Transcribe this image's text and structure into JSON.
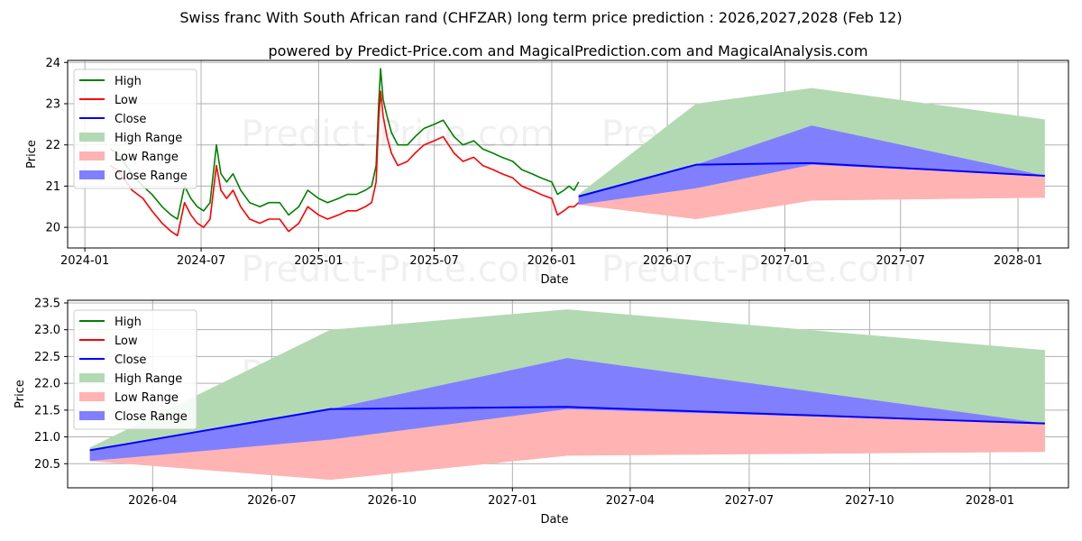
{
  "title": "Swiss franc With South African rand (CHFZAR) long term price prediction : 2026,2027,2028 (Feb 12)",
  "subtitle": "powered by Predict-Price.com and MagicalPrediction.com and MagicalAnalysis.com",
  "watermark": "Predict-Price.com",
  "colors": {
    "high": "#008000",
    "low": "#ff0000",
    "close": "#0000ff",
    "high_range": "#b3d9b3",
    "low_range": "#ffb3b3",
    "close_range": "#8080ff"
  },
  "chart_data": [
    {
      "type": "line",
      "xlabel": "Date",
      "ylabel": "Price",
      "xlim": [
        "2023-12-05",
        "2028-03-20"
      ],
      "ylim": [
        19.5,
        24.05
      ],
      "y_ticks": [
        20,
        21,
        22,
        23,
        24
      ],
      "x_ticks": [
        {
          "date": "2024-01-01",
          "label": "2024-01"
        },
        {
          "date": "2024-07-01",
          "label": "2024-07"
        },
        {
          "date": "2025-01-01",
          "label": "2025-01"
        },
        {
          "date": "2025-07-01",
          "label": "2025-07"
        },
        {
          "date": "2026-01-01",
          "label": "2026-01"
        },
        {
          "date": "2026-07-01",
          "label": "2026-07"
        },
        {
          "date": "2027-01-01",
          "label": "2027-01"
        },
        {
          "date": "2027-07-01",
          "label": "2027-07"
        },
        {
          "date": "2028-01-01",
          "label": "2028-01"
        }
      ],
      "legend": [
        "High",
        "Low",
        "Close",
        "High Range",
        "Low Range",
        "Close Range"
      ],
      "legend_position": "top-left",
      "history": {
        "dates": [
          "2024-02-10",
          "2024-02-20",
          "2024-03-01",
          "2024-03-15",
          "2024-04-01",
          "2024-04-15",
          "2024-05-01",
          "2024-05-15",
          "2024-05-25",
          "2024-06-05",
          "2024-06-15",
          "2024-06-25",
          "2024-07-05",
          "2024-07-15",
          "2024-07-25",
          "2024-08-01",
          "2024-08-10",
          "2024-08-20",
          "2024-09-01",
          "2024-09-15",
          "2024-10-01",
          "2024-10-15",
          "2024-11-01",
          "2024-11-15",
          "2024-12-01",
          "2024-12-15",
          "2025-01-01",
          "2025-01-15",
          "2025-02-01",
          "2025-02-15",
          "2025-03-01",
          "2025-03-15",
          "2025-03-25",
          "2025-04-01",
          "2025-04-05",
          "2025-04-08",
          "2025-04-12",
          "2025-04-18",
          "2025-04-25",
          "2025-05-05",
          "2025-05-20",
          "2025-06-01",
          "2025-06-15",
          "2025-07-01",
          "2025-07-15",
          "2025-08-01",
          "2025-08-15",
          "2025-09-01",
          "2025-09-15",
          "2025-10-01",
          "2025-10-15",
          "2025-11-01",
          "2025-11-15",
          "2025-12-01",
          "2025-12-15",
          "2026-01-01",
          "2026-01-10",
          "2026-01-20",
          "2026-01-28",
          "2026-02-05",
          "2026-02-12"
        ],
        "high": [
          21.9,
          21.8,
          21.6,
          21.3,
          21.0,
          20.8,
          20.5,
          20.3,
          20.2,
          21.0,
          20.7,
          20.5,
          20.4,
          20.6,
          22.0,
          21.3,
          21.1,
          21.3,
          20.9,
          20.6,
          20.5,
          20.6,
          20.6,
          20.3,
          20.5,
          20.9,
          20.7,
          20.6,
          20.7,
          20.8,
          20.8,
          20.9,
          21.0,
          21.5,
          23.0,
          23.85,
          23.1,
          22.7,
          22.3,
          22.0,
          22.0,
          22.2,
          22.4,
          22.5,
          22.6,
          22.2,
          22.0,
          22.1,
          21.9,
          21.8,
          21.7,
          21.6,
          21.4,
          21.3,
          21.2,
          21.1,
          20.8,
          20.9,
          21.0,
          20.9,
          21.1
        ],
        "low": [
          21.5,
          21.4,
          21.2,
          20.9,
          20.7,
          20.4,
          20.1,
          19.9,
          19.8,
          20.6,
          20.3,
          20.1,
          20.0,
          20.2,
          21.5,
          20.9,
          20.7,
          20.9,
          20.5,
          20.2,
          20.1,
          20.2,
          20.2,
          19.9,
          20.1,
          20.5,
          20.3,
          20.2,
          20.3,
          20.4,
          20.4,
          20.5,
          20.6,
          21.1,
          22.6,
          23.3,
          22.7,
          22.2,
          21.8,
          21.5,
          21.6,
          21.8,
          22.0,
          22.1,
          22.2,
          21.8,
          21.6,
          21.7,
          21.5,
          21.4,
          21.3,
          21.2,
          21.0,
          20.9,
          20.8,
          20.7,
          20.3,
          20.4,
          20.5,
          20.5,
          20.6
        ]
      },
      "forecast": {
        "dates": [
          "2026-02-12",
          "2026-08-15",
          "2027-02-12",
          "2028-02-12"
        ],
        "close": [
          20.75,
          21.52,
          21.56,
          21.25
        ],
        "high_range": [
          [
            20.55,
            20.8
          ],
          [
            20.2,
            23.0
          ],
          [
            20.65,
            23.38
          ],
          [
            20.72,
            22.62
          ]
        ],
        "low_range": [
          [
            20.55,
            20.75
          ],
          [
            20.2,
            20.95
          ],
          [
            20.65,
            21.52
          ],
          [
            20.72,
            21.25
          ]
        ],
        "close_range": [
          [
            20.55,
            20.75
          ],
          [
            20.95,
            21.52
          ],
          [
            21.52,
            22.47
          ],
          [
            21.25,
            21.25
          ]
        ]
      }
    },
    {
      "type": "line",
      "xlabel": "Date",
      "ylabel": "Price",
      "xlim": [
        "2026-01-26",
        "2028-03-01"
      ],
      "ylim": [
        20.05,
        23.55
      ],
      "y_ticks": [
        20.5,
        21.0,
        21.5,
        22.0,
        22.5,
        23.0,
        23.5
      ],
      "y_tick_labels": [
        "20.5",
        "21.0",
        "21.5",
        "22.0",
        "22.5",
        "23.0",
        "23.5"
      ],
      "x_ticks": [
        {
          "date": "2026-04-01",
          "label": "2026-04"
        },
        {
          "date": "2026-07-01",
          "label": "2026-07"
        },
        {
          "date": "2026-10-01",
          "label": "2026-10"
        },
        {
          "date": "2027-01-01",
          "label": "2027-01"
        },
        {
          "date": "2027-04-01",
          "label": "2027-04"
        },
        {
          "date": "2027-07-01",
          "label": "2027-07"
        },
        {
          "date": "2027-10-01",
          "label": "2027-10"
        },
        {
          "date": "2028-01-01",
          "label": "2028-01"
        }
      ],
      "legend": [
        "High",
        "Low",
        "Close",
        "High Range",
        "Low Range",
        "Close Range"
      ],
      "legend_position": "top-left",
      "forecast": {
        "dates": [
          "2026-02-12",
          "2026-08-15",
          "2027-02-12",
          "2028-02-12"
        ],
        "close": [
          20.75,
          21.52,
          21.56,
          21.25
        ],
        "high_range": [
          [
            20.55,
            20.8
          ],
          [
            20.2,
            23.0
          ],
          [
            20.65,
            23.38
          ],
          [
            20.72,
            22.62
          ]
        ],
        "low_range": [
          [
            20.55,
            20.75
          ],
          [
            20.2,
            20.95
          ],
          [
            20.65,
            21.52
          ],
          [
            20.72,
            21.25
          ]
        ],
        "close_range": [
          [
            20.55,
            20.75
          ],
          [
            20.95,
            21.52
          ],
          [
            21.52,
            22.47
          ],
          [
            21.25,
            21.25
          ]
        ]
      }
    }
  ]
}
